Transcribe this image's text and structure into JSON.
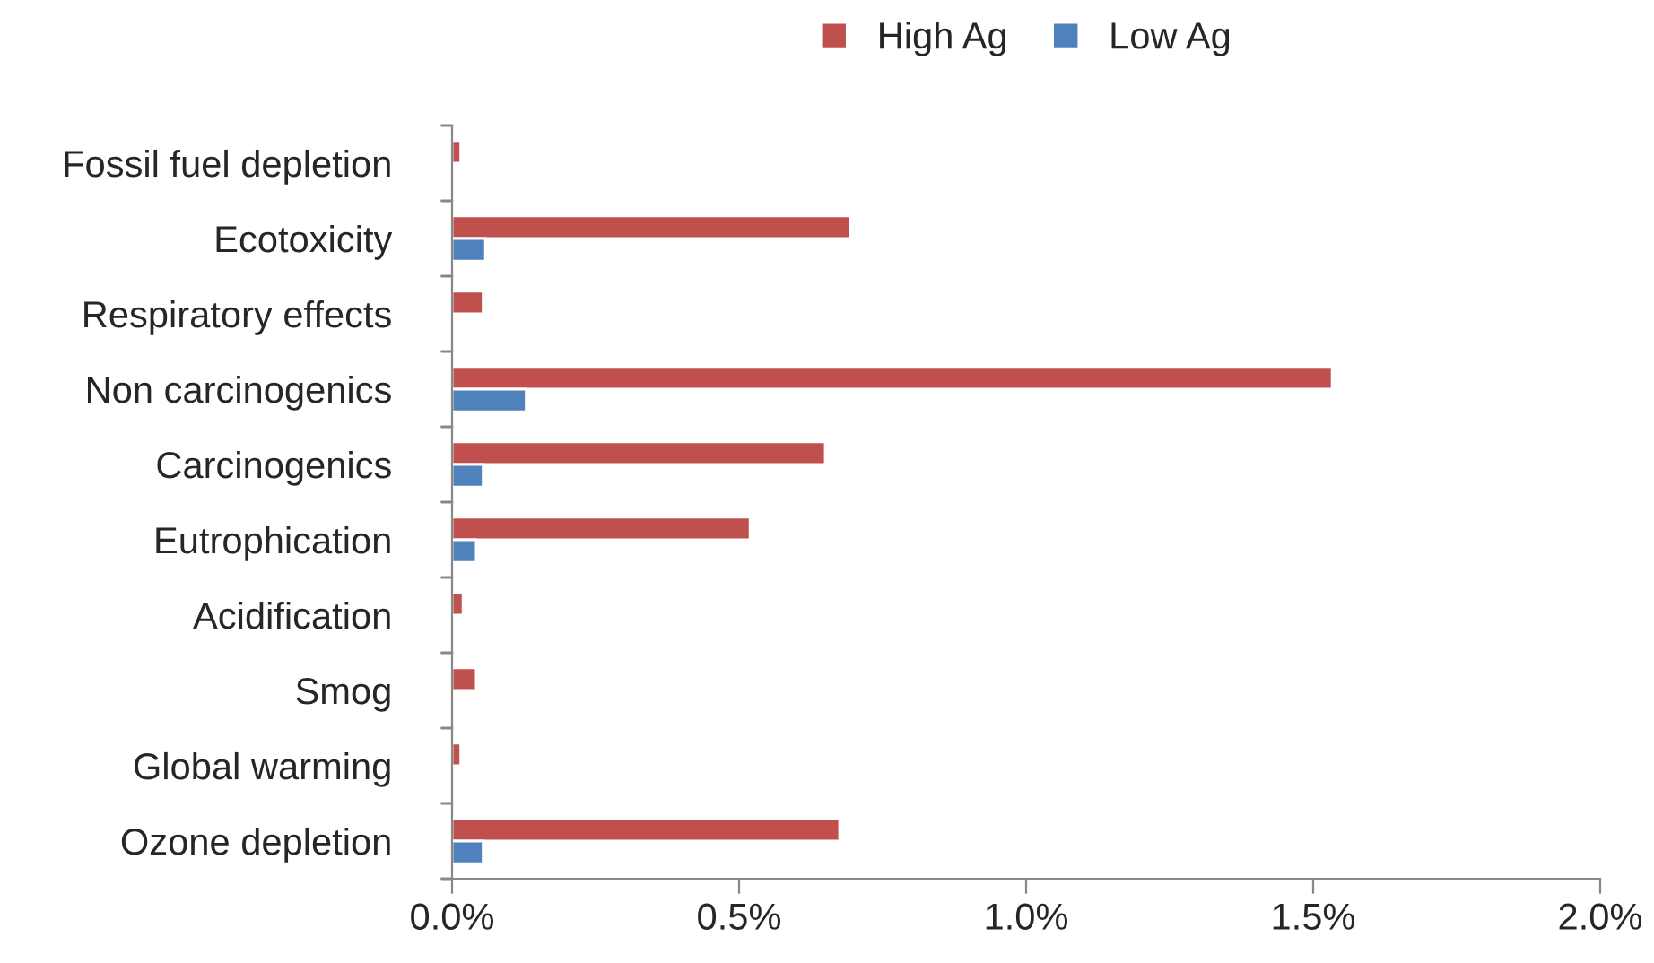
{
  "chart_data": {
    "type": "bar",
    "orientation": "horizontal",
    "categories": [
      "Fossil fuel depletion",
      "Ecotoxicity",
      "Respiratory effects",
      "Non carcinogenics",
      "Carcinogenics",
      "Eutrophication",
      "Acidification",
      "Smog",
      "Global warming",
      "Ozone depletion"
    ],
    "series": [
      {
        "name": "High Ag",
        "color": "#c0504d",
        "values": [
          0.015,
          0.694,
          0.054,
          1.533,
          0.65,
          0.519,
          0.019,
          0.042,
          0.015,
          0.675
        ]
      },
      {
        "name": "Low Ag",
        "color": "#4f81bd",
        "values": [
          null,
          0.058,
          null,
          0.129,
          0.054,
          0.042,
          null,
          null,
          null,
          0.054
        ]
      }
    ],
    "xlim": [
      0,
      2
    ],
    "xticks": [
      {
        "value": 0,
        "label": "0.0%"
      },
      {
        "value": 0.5,
        "label": "0.5%"
      },
      {
        "value": 1,
        "label": "1.0%"
      },
      {
        "value": 1.5,
        "label": "1.5%"
      },
      {
        "value": 2,
        "label": "2.0%"
      }
    ],
    "grid": false,
    "legend": "top"
  }
}
